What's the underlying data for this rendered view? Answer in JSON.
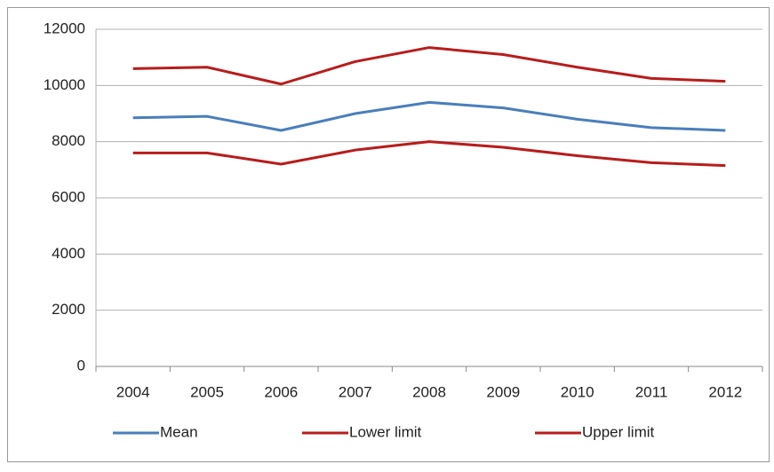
{
  "chart_data": {
    "type": "line",
    "categories": [
      "2004",
      "2005",
      "2006",
      "2007",
      "2008",
      "2009",
      "2010",
      "2011",
      "2012"
    ],
    "series": [
      {
        "name": "Mean",
        "color": "#4a7ebb",
        "values": [
          8850,
          8900,
          8400,
          9000,
          9400,
          9200,
          8800,
          8500,
          8400
        ]
      },
      {
        "name": "Lower limit",
        "color": "#b81c1c",
        "values": [
          7600,
          7600,
          7200,
          7700,
          8000,
          7800,
          7500,
          7250,
          7150
        ]
      },
      {
        "name": "Upper limit",
        "color": "#b81c1c",
        "values": [
          10600,
          10650,
          10050,
          10850,
          11350,
          11100,
          10650,
          10250,
          10150
        ]
      }
    ],
    "ylim": [
      0,
      12000
    ],
    "yticks": [
      0,
      2000,
      4000,
      6000,
      8000,
      10000,
      12000
    ],
    "grid": true,
    "legend": "bottom"
  }
}
